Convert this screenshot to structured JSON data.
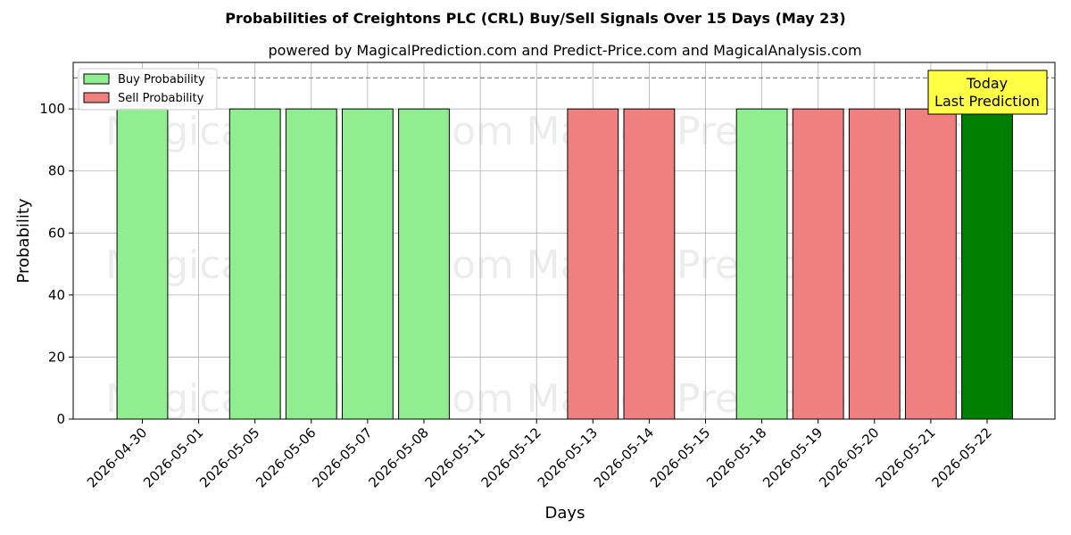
{
  "chart_data": {
    "type": "bar",
    "title": "Probabilities of Creightons PLC (CRL) Buy/Sell Signals Over 15 Days (May 23)",
    "subtitle": "powered by MagicalPrediction.com and Predict-Price.com and MagicalAnalysis.com",
    "xlabel": "Days",
    "ylabel": "Probability",
    "ylim": [
      0,
      115
    ],
    "yticks": [
      0,
      20,
      40,
      60,
      80,
      100
    ],
    "reference_line": 110,
    "grid": true,
    "legend_position": "top-left",
    "categories": [
      "2026-04-30",
      "2026-05-01",
      "2026-05-05",
      "2026-05-06",
      "2026-05-07",
      "2026-05-08",
      "2026-05-11",
      "2026-05-12",
      "2026-05-13",
      "2026-05-14",
      "2026-05-15",
      "2026-05-18",
      "2026-05-19",
      "2026-05-20",
      "2026-05-21",
      "2026-05-22"
    ],
    "series": [
      {
        "name": "Buy Probability",
        "color": "#90ee90",
        "values": [
          100,
          null,
          100,
          100,
          100,
          100,
          null,
          null,
          null,
          null,
          null,
          100,
          null,
          null,
          null,
          null
        ]
      },
      {
        "name": "Sell Probability",
        "color": "#f08080",
        "values": [
          null,
          null,
          null,
          null,
          null,
          null,
          null,
          null,
          100,
          100,
          null,
          null,
          100,
          100,
          100,
          null
        ]
      }
    ],
    "highlight": {
      "x_index": 15,
      "value": 100,
      "color": "#008000"
    },
    "annotation": {
      "lines": [
        "Today",
        "Last Prediction"
      ],
      "color": "#ffff44"
    },
    "watermarks": [
      "MagicalAnalysis.com",
      "MagicalPrediction.com"
    ]
  }
}
